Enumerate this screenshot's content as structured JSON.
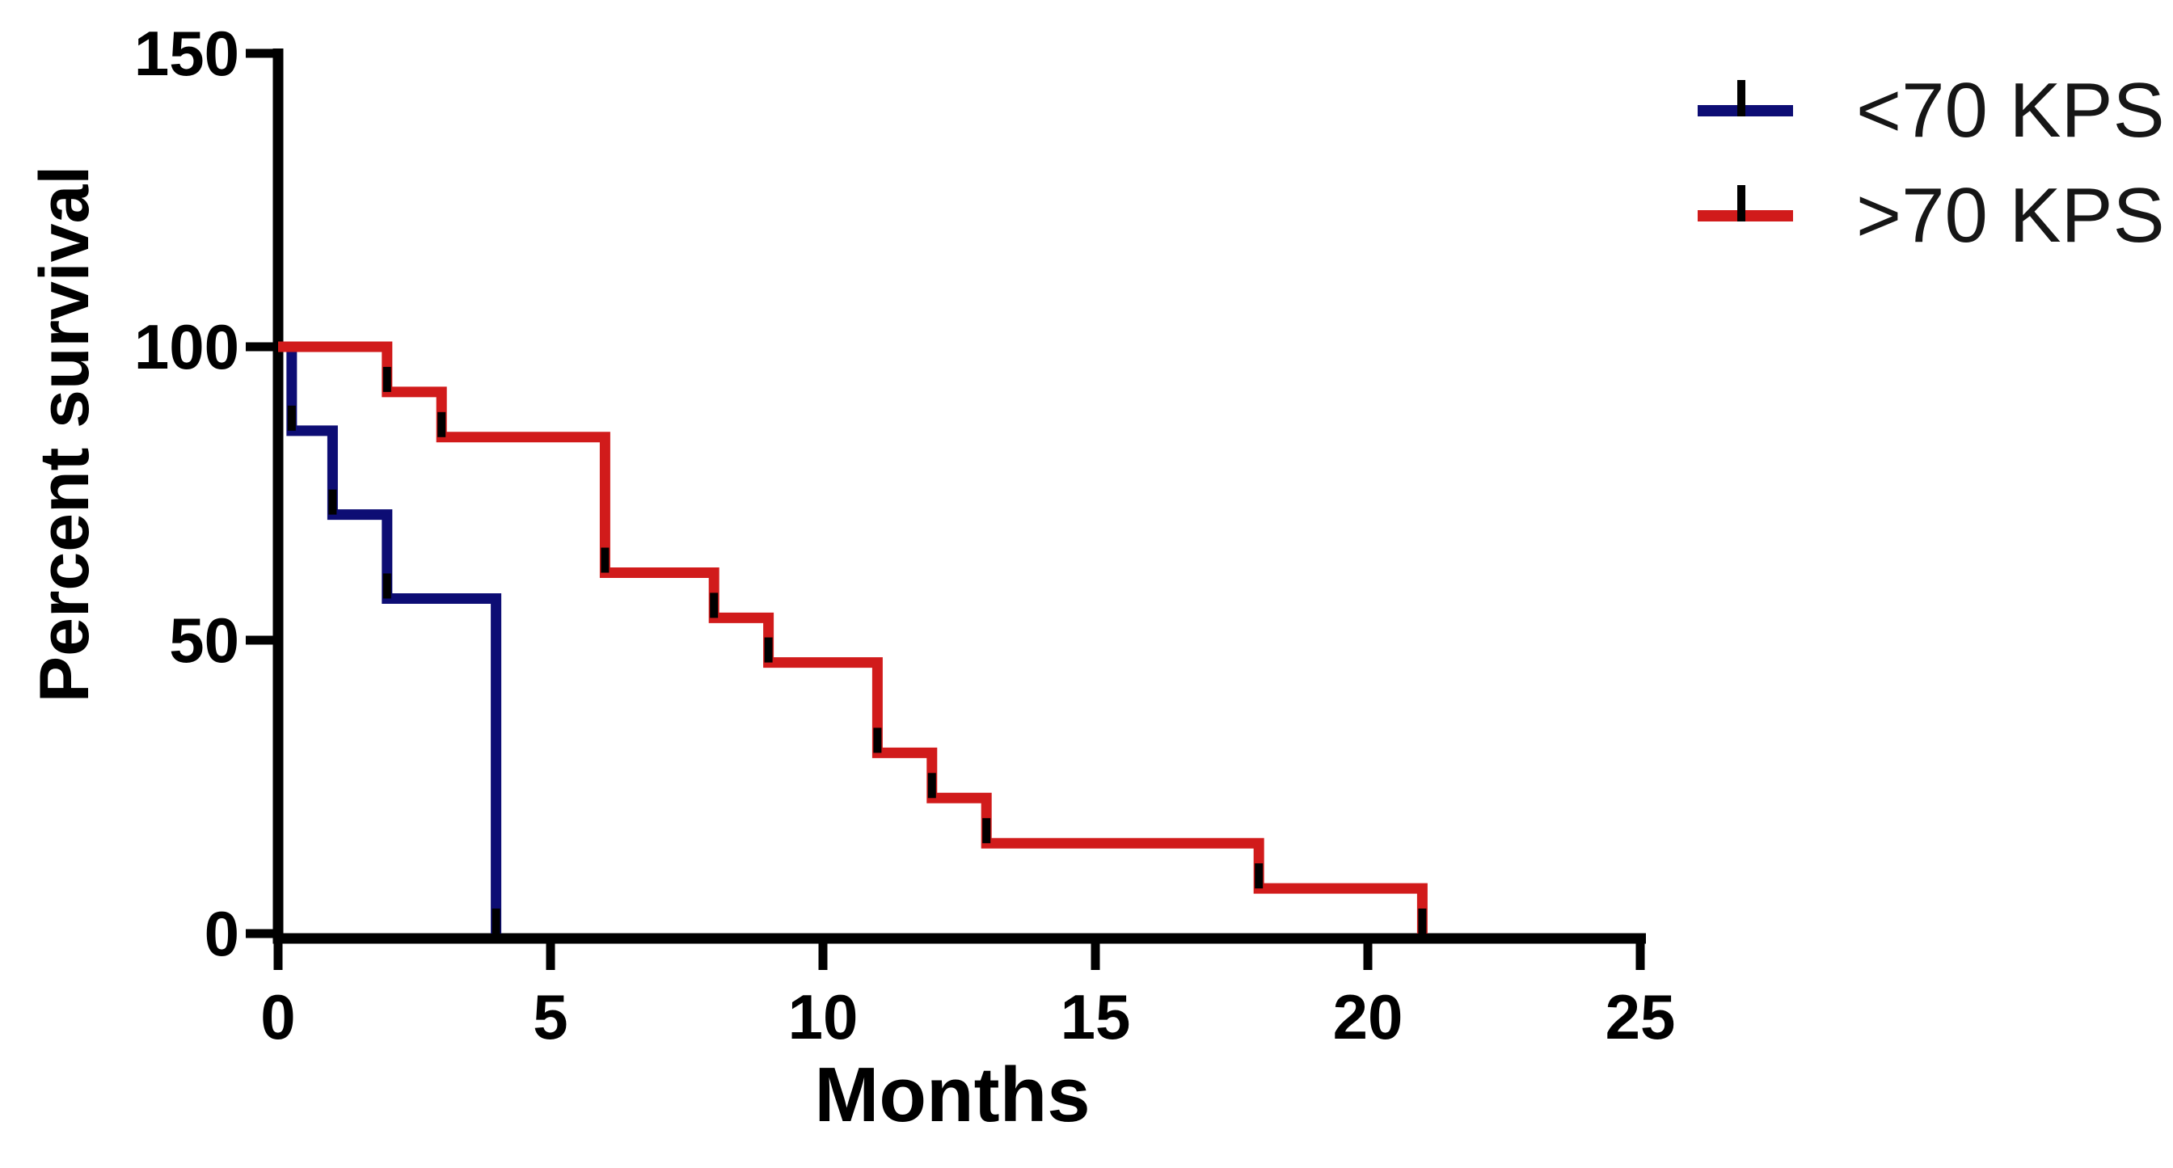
{
  "figure": {
    "background": "#ffffff",
    "axis_color": "#000000"
  },
  "chart_data": {
    "type": "line",
    "subtype": "kaplan-meier-survival-step",
    "title": "",
    "xlabel": "Months",
    "ylabel": "Percent survival",
    "xlim": [
      0,
      25
    ],
    "ylim": [
      0,
      150
    ],
    "xticks": [
      0,
      5,
      10,
      15,
      20,
      25
    ],
    "yticks": [
      0,
      50,
      100,
      150
    ],
    "grid": false,
    "legend_position": "top-right",
    "marker": "black-death-tick",
    "series": [
      {
        "name": "<70 KPS",
        "color": "#0d0d74",
        "points": [
          [
            0,
            100
          ],
          [
            0.25,
            85.7
          ],
          [
            1,
            71.4
          ],
          [
            2,
            57.1
          ],
          [
            4,
            0
          ]
        ]
      },
      {
        "name": ">70 KPS",
        "color": "#d11b1b",
        "points": [
          [
            0,
            100
          ],
          [
            2,
            92.3
          ],
          [
            3,
            84.6
          ],
          [
            6,
            61.5
          ],
          [
            8,
            53.8
          ],
          [
            9,
            46.2
          ],
          [
            11,
            30.8
          ],
          [
            12,
            23.1
          ],
          [
            13,
            15.4
          ],
          [
            18,
            7.7
          ],
          [
            21,
            0
          ]
        ]
      }
    ]
  },
  "legend": {
    "items": [
      {
        "label": "<70 KPS",
        "color": "#0d0d74"
      },
      {
        "label": ">70 KPS",
        "color": "#d11b1b"
      }
    ]
  }
}
